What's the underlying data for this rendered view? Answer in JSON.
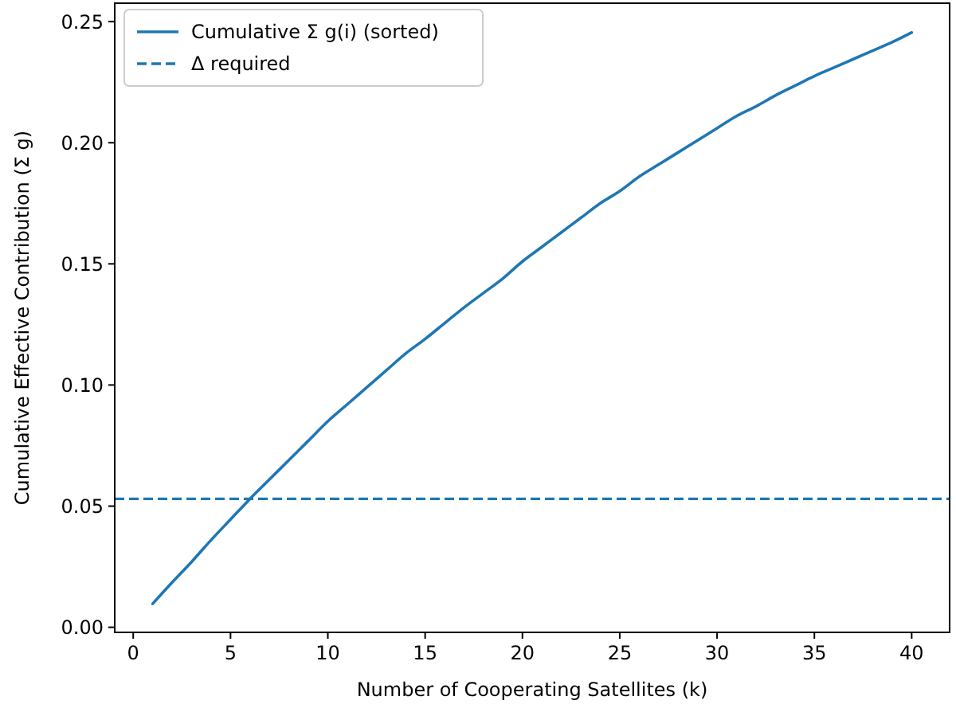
{
  "chart_data": {
    "type": "line",
    "xlabel": "Number of Cooperating Satellites (k)",
    "ylabel": "Cumulative Effective Contribution (Σ g)",
    "x": [
      1,
      2,
      3,
      4,
      5,
      6,
      7,
      8,
      9,
      10,
      11,
      12,
      13,
      14,
      15,
      16,
      17,
      18,
      19,
      20,
      21,
      22,
      23,
      24,
      25,
      26,
      27,
      28,
      29,
      30,
      31,
      32,
      33,
      34,
      35,
      36,
      37,
      38,
      39,
      40
    ],
    "series": [
      {
        "name": "Cumulative Σ g(i) (sorted)",
        "color": "#1f77b4",
        "values": [
          0.0097,
          0.0185,
          0.027,
          0.036,
          0.0445,
          0.053,
          0.061,
          0.069,
          0.077,
          0.085,
          0.092,
          0.099,
          0.106,
          0.113,
          0.119,
          0.1255,
          0.132,
          0.138,
          0.144,
          0.151,
          0.157,
          0.163,
          0.169,
          0.175,
          0.18,
          0.186,
          0.191,
          0.196,
          0.201,
          0.206,
          0.211,
          0.215,
          0.2195,
          0.2235,
          0.2275,
          0.231,
          0.2345,
          0.238,
          0.2415,
          0.2455
        ]
      }
    ],
    "ref_lines": [
      {
        "axis": "y",
        "value": 0.053,
        "label": "Δ required",
        "color": "#1f77b4",
        "line_style": "dashed"
      }
    ],
    "xlim": [
      -0.95,
      41.95
    ],
    "ylim": [
      -0.0021,
      0.2576
    ],
    "xticks": [
      0,
      5,
      10,
      15,
      20,
      25,
      30,
      35,
      40
    ],
    "yticks": [
      {
        "value": 0,
        "label": "0.00"
      },
      {
        "value": 0.05,
        "label": "0.05"
      },
      {
        "value": 0.1,
        "label": "0.10"
      },
      {
        "value": 0.15,
        "label": "0.15"
      },
      {
        "value": 0.2,
        "label": "0.20"
      },
      {
        "value": 0.25,
        "label": "0.25"
      }
    ],
    "legend": "top left",
    "grid": false,
    "line_style": "solid",
    "marker": "none"
  }
}
